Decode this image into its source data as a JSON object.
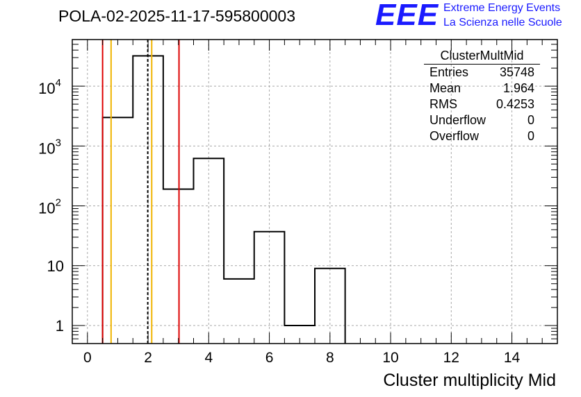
{
  "title": "POLA-02-2025-11-17-595800003",
  "logo": {
    "text": "EEE",
    "line1": "Extreme Energy Events",
    "line2": "La Scienza nelle Scuole"
  },
  "stats": {
    "name": "ClusterMultMid",
    "rows": [
      {
        "label": "Entries",
        "value": "35748"
      },
      {
        "label": "Mean",
        "value": "1.964"
      },
      {
        "label": "RMS",
        "value": "0.4253"
      },
      {
        "label": "Underflow",
        "value": "0"
      },
      {
        "label": "Overflow",
        "value": "0"
      }
    ]
  },
  "chart_data": {
    "type": "bar",
    "title": "POLA-02-2025-11-17-595800003",
    "xlabel": "Cluster multiplicity Mid",
    "ylabel": "",
    "yscale": "log",
    "xlim": [
      -0.5,
      15.5
    ],
    "ylim": [
      0.5,
      60000
    ],
    "grid": true,
    "bin_width": 1,
    "x": [
      1,
      2,
      3,
      4,
      5,
      6,
      7,
      8
    ],
    "values": [
      3000,
      32000,
      190,
      620,
      6,
      37,
      1,
      9
    ],
    "xticks": [
      0,
      2,
      4,
      6,
      8,
      10,
      12,
      14
    ],
    "xtick_labels": [
      "0",
      "2",
      "4",
      "6",
      "8",
      "10",
      "12",
      "14"
    ],
    "yticks": [
      1,
      10,
      100,
      1000,
      10000
    ],
    "ytick_labels": [
      "1",
      "10",
      "10^2",
      "10^3",
      "10^4"
    ],
    "vertical_lines": [
      {
        "x": 0.5,
        "color": "#dd0000",
        "style": "solid"
      },
      {
        "x": 0.78,
        "color": "#f0b400",
        "style": "solid"
      },
      {
        "x": 1.99,
        "color": "#000000",
        "style": "dashed"
      },
      {
        "x": 2.12,
        "color": "#f0b400",
        "style": "solid"
      },
      {
        "x": 3.02,
        "color": "#dd0000",
        "style": "solid"
      }
    ]
  }
}
